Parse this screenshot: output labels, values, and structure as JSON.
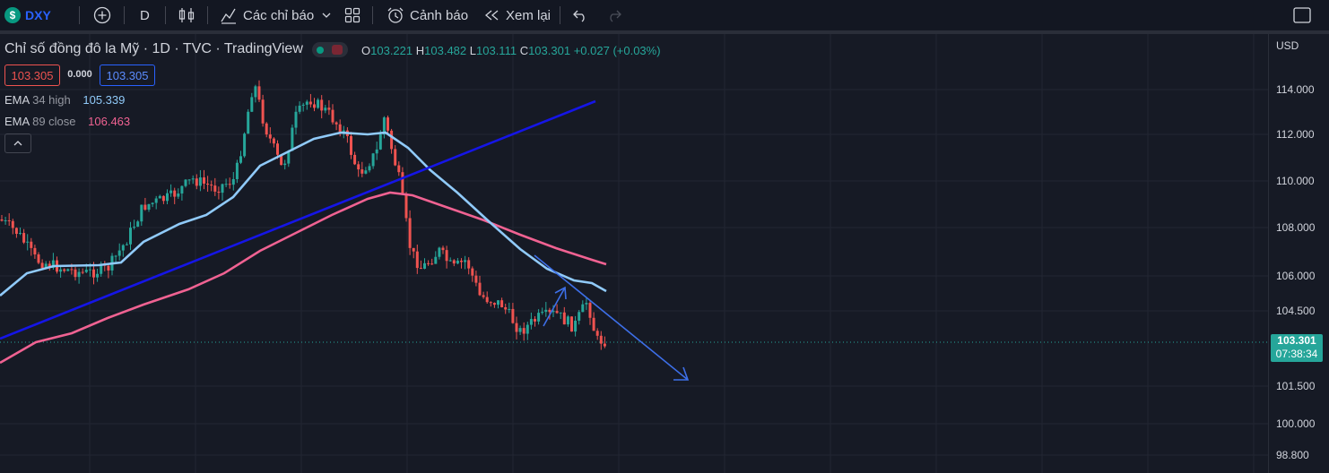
{
  "toolbar": {
    "symbol": "DXY",
    "interval": "D",
    "indicators_label": "Các chỉ báo",
    "alert_label": "Cảnh báo",
    "replay_label": "Xem lại"
  },
  "legend": {
    "title": "Chỉ số đồng đô la Mỹ · 1D · TVC · TradingView",
    "o_label": "O",
    "o_value": "103.221",
    "h_label": "H",
    "h_value": "103.482",
    "l_label": "L",
    "l_value": "103.111",
    "c_label": "C",
    "c_value": "103.301",
    "change": "+0.027 (+0.03%)",
    "bid": "103.305",
    "spread": "0.000",
    "ask": "103.305"
  },
  "indicators": [
    {
      "name": "EMA",
      "params": "34 high",
      "value": "105.339",
      "color": "#90caf9"
    },
    {
      "name": "EMA",
      "params": "89 close",
      "value": "106.463",
      "color": "#f06292"
    }
  ],
  "price_axis": {
    "currency": "USD",
    "ticks": [
      "114.000",
      "112.000",
      "110.000",
      "108.000",
      "106.000",
      "104.500",
      "101.500",
      "100.000",
      "98.800"
    ],
    "last_price": "103.301",
    "countdown": "07:38:34"
  },
  "colors": {
    "up": "#26a69a",
    "down": "#ef5350",
    "ema34": "#90caf9",
    "ema89": "#f06292",
    "trendline": "#1515e6",
    "arrows": "#3d6fe8"
  },
  "chart_data": {
    "type": "candlestick",
    "y_axis": {
      "min": 98.8,
      "max": 114.0,
      "ticks": [
        114.0,
        112.0,
        110.0,
        108.0,
        106.0,
        104.5,
        101.5,
        100.0,
        98.8
      ]
    },
    "last_close": 103.301,
    "ema34_high_last": 105.339,
    "ema89_close_last": 106.463
  }
}
